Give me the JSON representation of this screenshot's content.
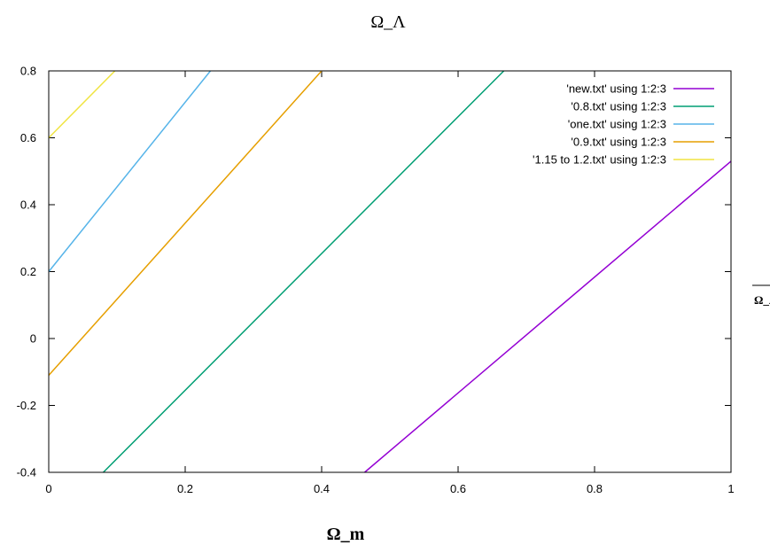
{
  "chart_data": {
    "type": "line",
    "title": "Ω_Λ",
    "xlabel": "Ω_m",
    "ylabel": "Ω_Λ",
    "xlim": [
      0,
      1
    ],
    "ylim": [
      -0.4,
      0.8
    ],
    "x_ticks": [
      "0",
      "0.2",
      "0.4",
      "0.6",
      "0.8",
      "1"
    ],
    "y_ticks": [
      "-0.4",
      "-0.2",
      "0",
      "0.2",
      "0.4",
      "0.6",
      "0.8"
    ],
    "grid": false,
    "legend_position": "top-right",
    "series": [
      {
        "name": "'new.txt' using 1:2:3",
        "color": "#9400d3",
        "x": [
          0.463,
          1.0
        ],
        "y": [
          -0.4,
          0.53
        ]
      },
      {
        "name": "'0.8.txt' using 1:2:3",
        "color": "#009e73",
        "x": [
          0.08,
          0.667
        ],
        "y": [
          -0.4,
          0.8
        ]
      },
      {
        "name": "'one.txt' using 1:2:3",
        "color": "#56b4e9",
        "x": [
          0.0,
          0.237
        ],
        "y": [
          0.2,
          0.8
        ]
      },
      {
        "name": "'0.9.txt' using 1:2:3",
        "color": "#e69f00",
        "x": [
          0.0,
          0.4
        ],
        "y": [
          -0.11,
          0.8
        ]
      },
      {
        "name": "'1.15 to 1.2.txt' using 1:2:3",
        "color": "#f0e442",
        "x": [
          0.0,
          0.097
        ],
        "y": [
          0.6,
          0.8
        ]
      }
    ]
  }
}
